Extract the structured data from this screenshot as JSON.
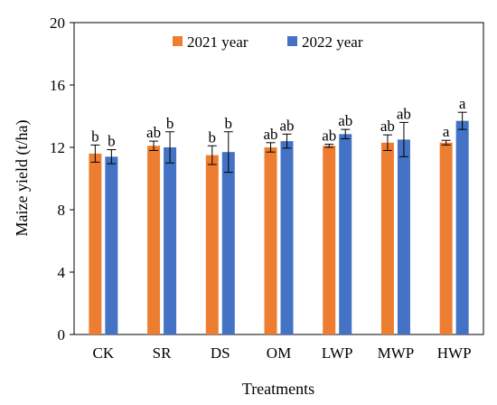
{
  "chart_data": {
    "type": "bar",
    "title": "",
    "xlabel": "Treatments",
    "ylabel": "Maize yield (t/ha)",
    "ylim": [
      0,
      20
    ],
    "yticks": [
      "0",
      "4",
      "8",
      "12",
      "16",
      "20"
    ],
    "grid": false,
    "legend_position": "top-center",
    "categories": [
      "CK",
      "SR",
      "DS",
      "OM",
      "LWP",
      "MWP",
      "HWP"
    ],
    "series": [
      {
        "name": "2021 year",
        "color": "#ED7D31",
        "values": [
          11.6,
          12.1,
          11.5,
          12.0,
          12.1,
          12.3,
          12.3
        ],
        "errors": [
          0.55,
          0.3,
          0.6,
          0.3,
          0.1,
          0.5,
          0.15
        ],
        "labels": [
          "b",
          "ab",
          "b",
          "ab",
          "ab",
          "ab",
          "a"
        ]
      },
      {
        "name": "2022 year",
        "color": "#4472C4",
        "values": [
          11.4,
          12.0,
          11.7,
          12.4,
          12.85,
          12.5,
          13.7
        ],
        "errors": [
          0.45,
          1.0,
          1.3,
          0.45,
          0.3,
          1.1,
          0.55
        ],
        "labels": [
          "b",
          "b",
          "b",
          "ab",
          "ab",
          "ab",
          "a"
        ]
      }
    ]
  }
}
